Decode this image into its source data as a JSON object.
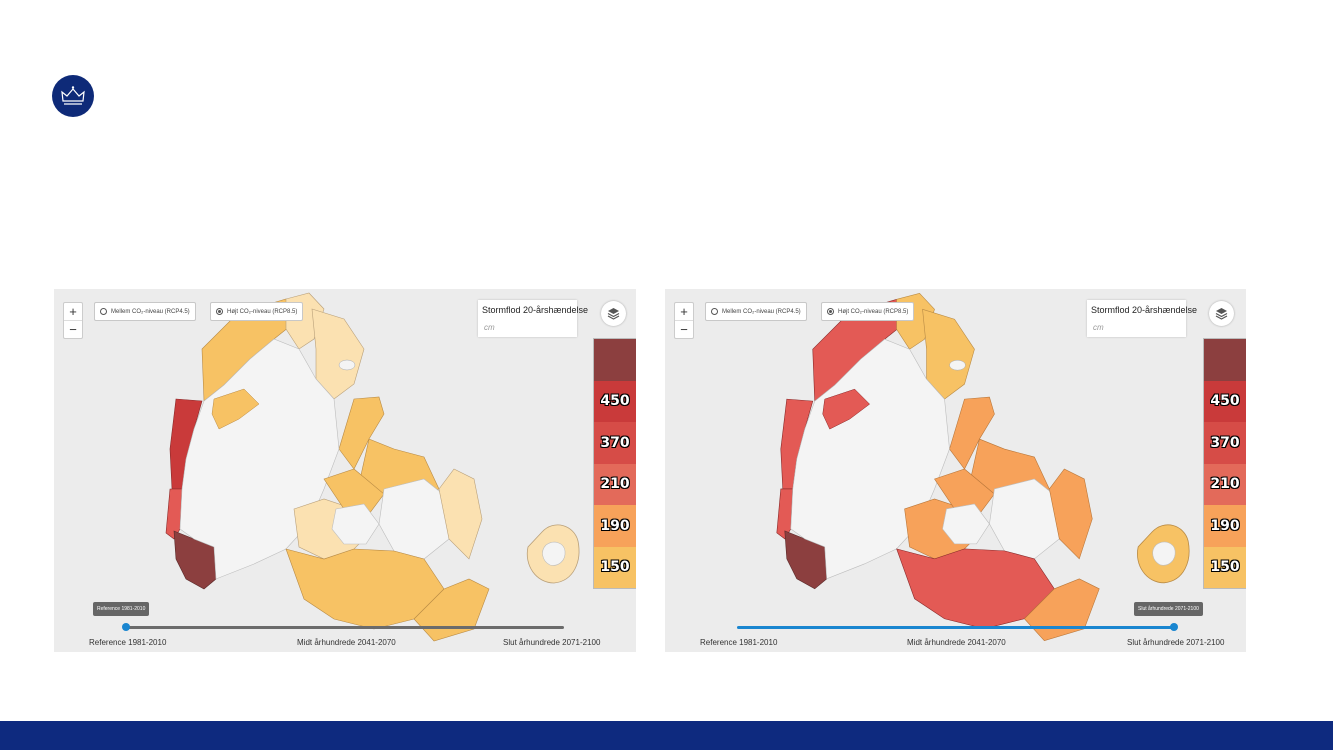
{
  "colors": {
    "brand_navy": "#0e2a78",
    "slider_blue": "#1a86d0",
    "scale": [
      "#8c3f3f",
      "#c93a3a",
      "#e35a55",
      "#f7a25a",
      "#f7c264",
      "#fbe1b1"
    ]
  },
  "logo": {
    "icon": "crown-icon"
  },
  "panels": [
    {
      "zoom_in": "+",
      "zoom_out": "−",
      "option_mid": "Mellem CO₂-niveau (RCP4.5)",
      "option_high": "Højt CO₂-niveau (RCP8.5)",
      "selected_option": "high",
      "legend_title": "Stormflod 20-årshændelse",
      "legend_unit": "cm",
      "scale_labels": [
        "450",
        "370",
        "210",
        "190",
        "150"
      ],
      "slider_tooltip": "Reference 1981-2010",
      "slider_position": 0,
      "period_labels": [
        "Reference 1981-2010",
        "Midt århundrede 2041-2070",
        "Slut århundrede 2071-2100"
      ]
    },
    {
      "zoom_in": "+",
      "zoom_out": "−",
      "option_mid": "Mellem CO₂-niveau (RCP4.5)",
      "option_high": "Højt CO₂-niveau (RCP8.5)",
      "selected_option": "high",
      "legend_title": "Stormflod 20-årshændelse",
      "legend_unit": "cm",
      "scale_labels": [
        "450",
        "370",
        "210",
        "190",
        "150"
      ],
      "slider_tooltip": "Slut århundrede 2071-2100",
      "slider_position": 1,
      "period_labels": [
        "Reference 1981-2010",
        "Midt århundrede 2041-2070",
        "Slut århundrede 2071-2100"
      ]
    }
  ]
}
